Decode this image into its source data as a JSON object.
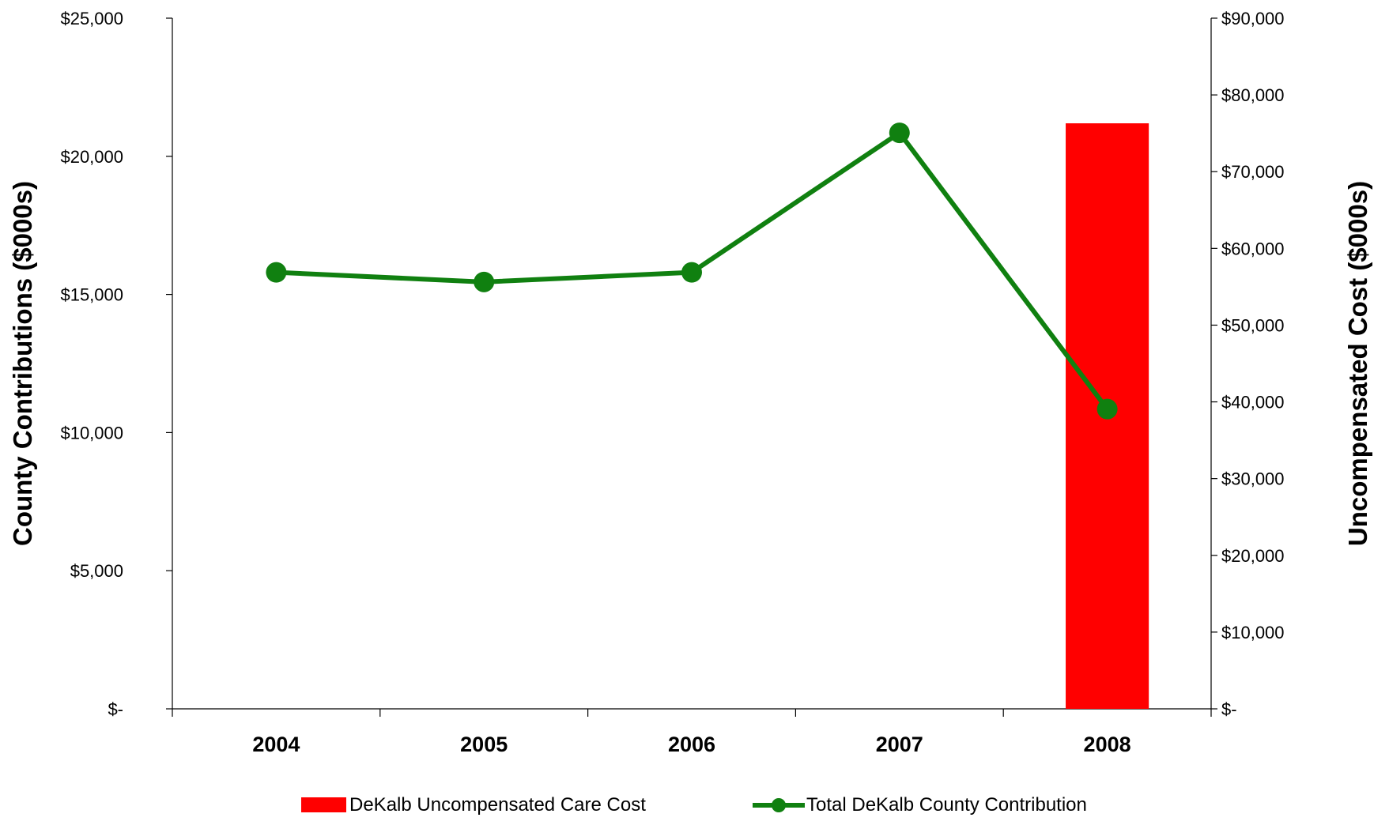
{
  "chart_data": {
    "type": "bar+line",
    "categories": [
      "2004",
      "2005",
      "2006",
      "2007",
      "2008"
    ],
    "series": [
      {
        "name": "DeKalb Uncompensated Care Cost",
        "type": "bar",
        "axis": "right",
        "color": "#ff0000",
        "values": [
          null,
          null,
          null,
          null,
          76300
        ]
      },
      {
        "name": "Total DeKalb County Contribution",
        "type": "line",
        "axis": "left",
        "color": "#108010",
        "values": [
          15800,
          15450,
          15800,
          20850,
          10850
        ]
      }
    ],
    "ylabel": "County Contributions ($000s)",
    "y2label": "Uncompensated Cost ($000s)",
    "ylim": [
      0,
      25000
    ],
    "y2lim": [
      0,
      90000
    ],
    "yticks": [
      "$-",
      "$5,000",
      "$10,000",
      "$15,000",
      "$20,000",
      "$25,000"
    ],
    "y2ticks": [
      "$-",
      "$10,000",
      "$20,000",
      "$30,000",
      "$40,000",
      "$50,000",
      "$60,000",
      "$70,000",
      "$80,000",
      "$90,000"
    ],
    "legend_position": "bottom",
    "grid": false
  }
}
